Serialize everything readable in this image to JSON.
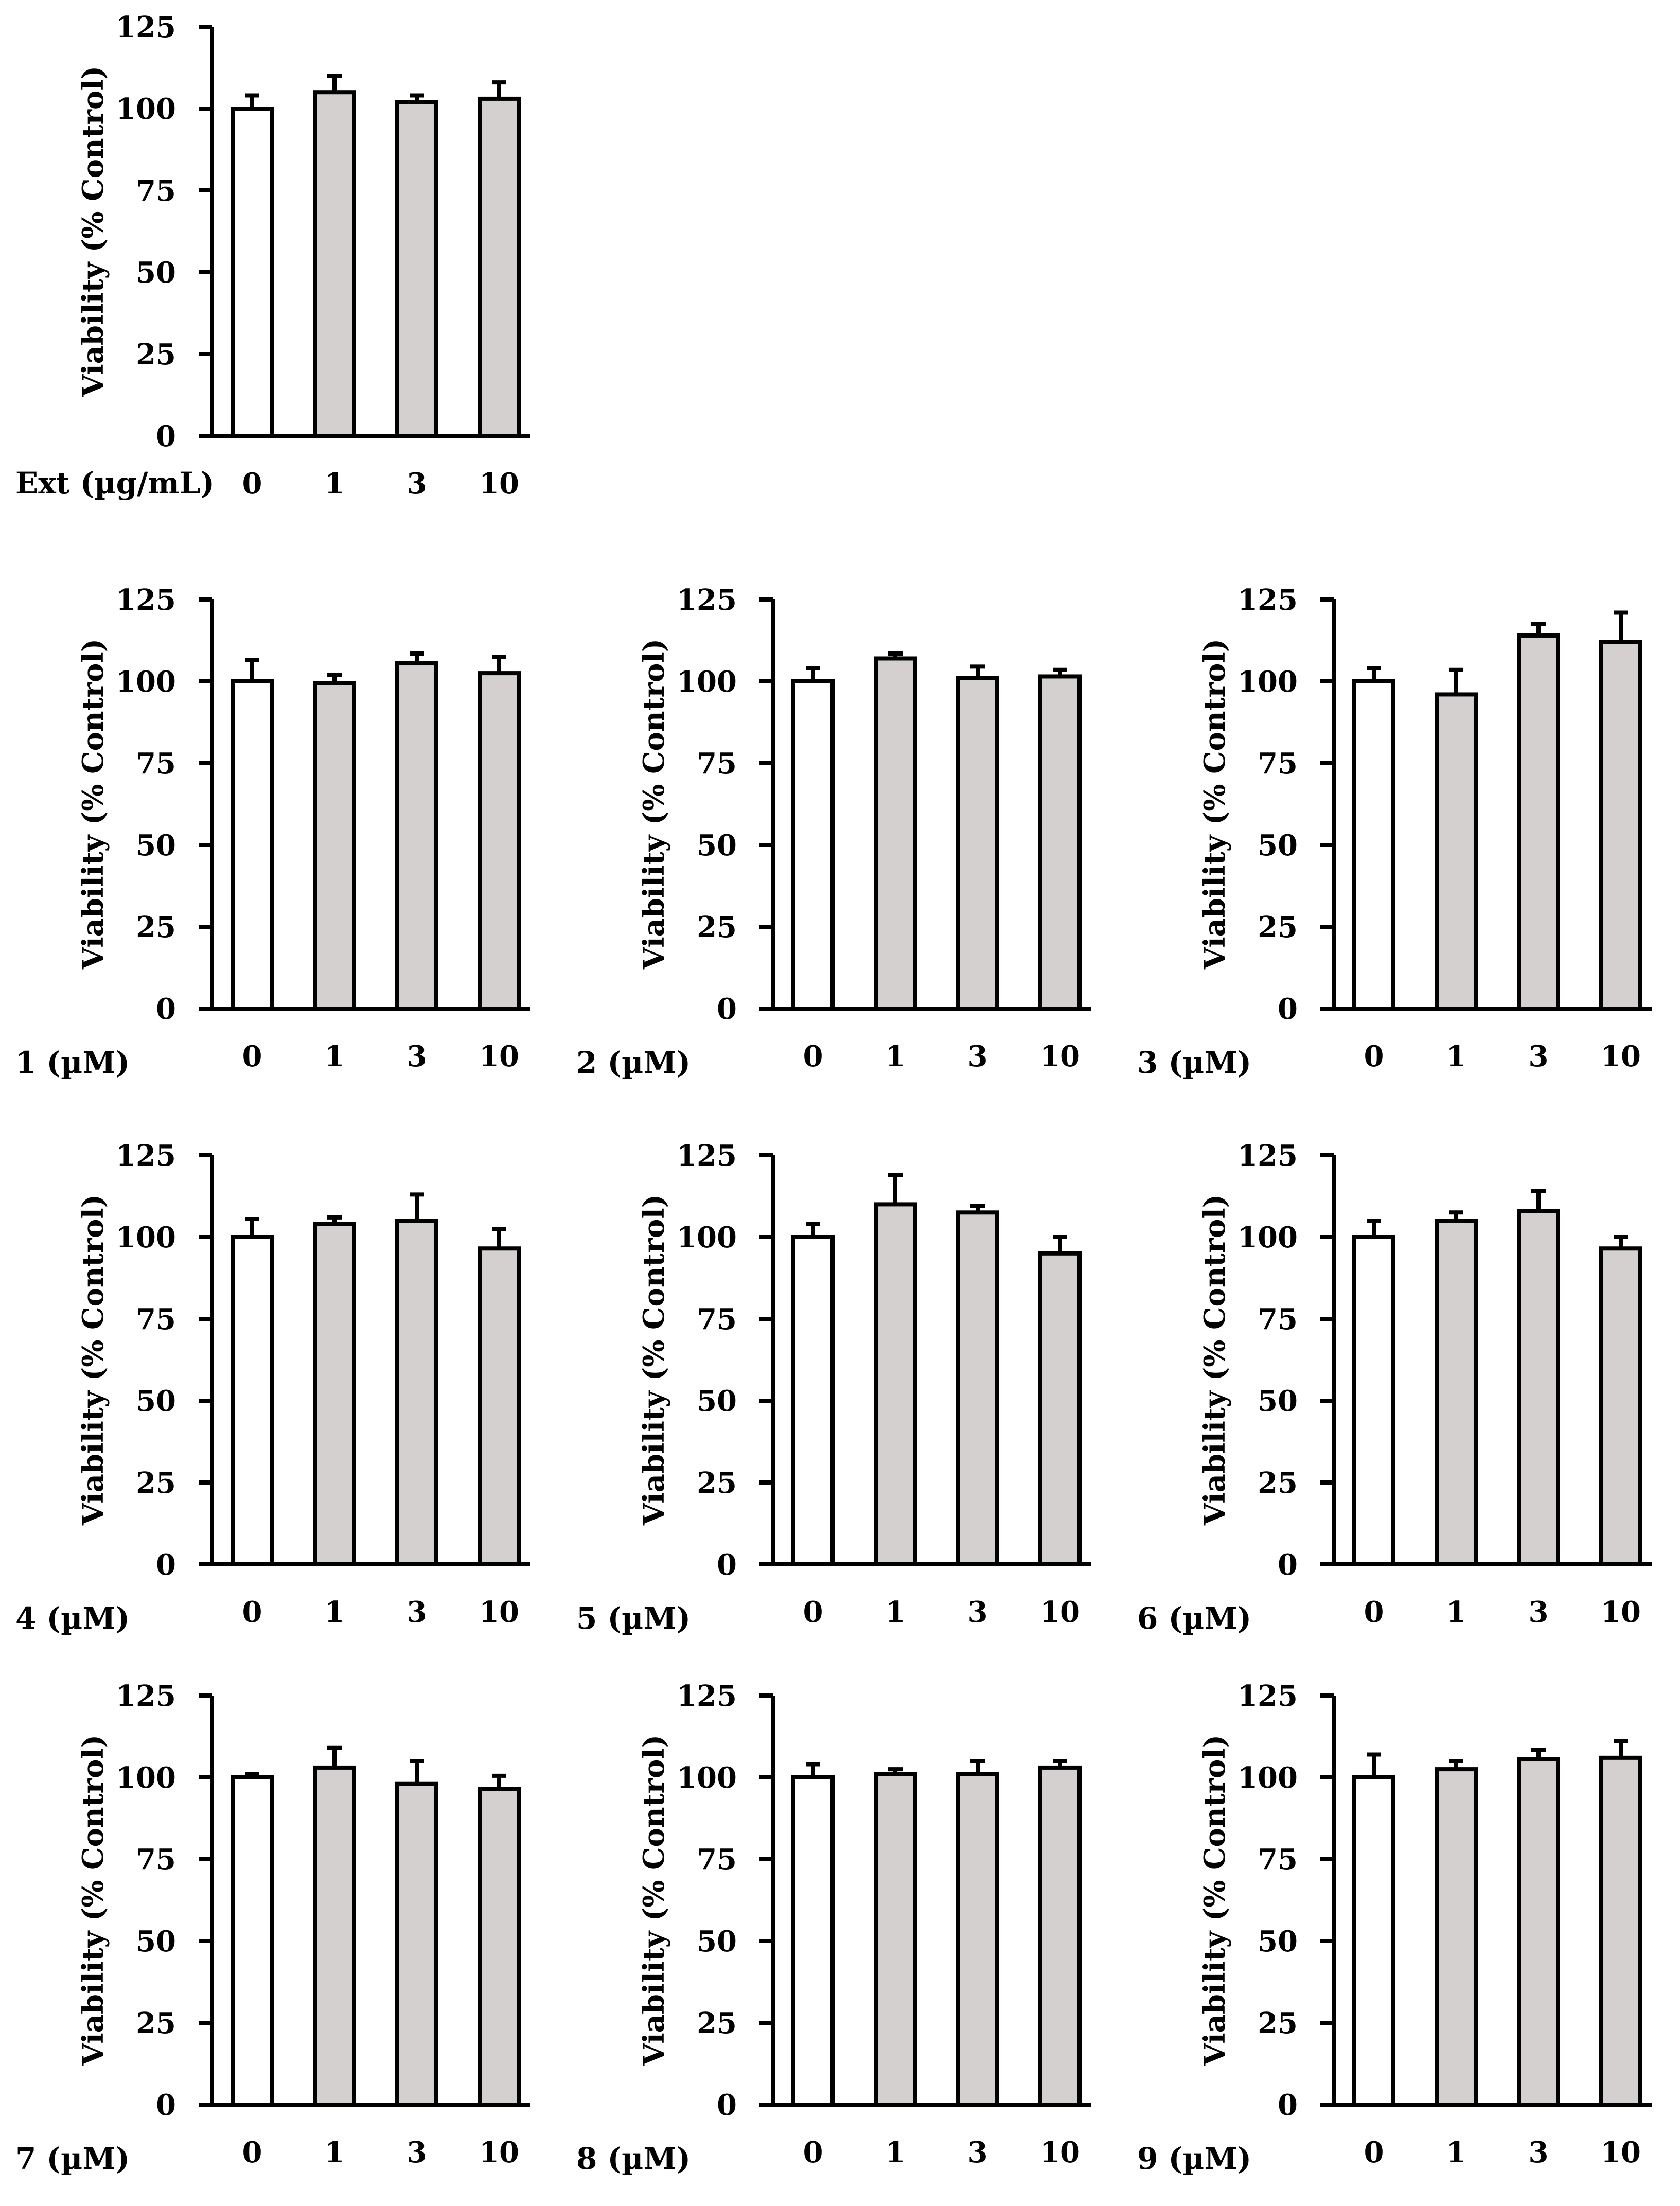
{
  "colors": {
    "control_bar": "#ffffff",
    "treated_bar": "#d4d0d0",
    "stroke": "#000000"
  },
  "chart_data": [
    {
      "type": "bar",
      "xlabel": "Ext (µg/mL)",
      "ylabel": "Viability (% Control)",
      "ylim": [
        0,
        125
      ],
      "yticks": [
        0,
        25,
        50,
        75,
        100,
        125
      ],
      "categories": [
        "0",
        "1",
        "3",
        "10"
      ],
      "values": [
        100,
        105,
        102,
        103
      ],
      "errors": [
        4,
        5,
        2,
        5
      ]
    },
    {
      "type": "bar",
      "xlabel": "1 (µM)",
      "ylabel": "Viability (% Control)",
      "ylim": [
        0,
        125
      ],
      "yticks": [
        0,
        25,
        50,
        75,
        100,
        125
      ],
      "categories": [
        "0",
        "1",
        "3",
        "10"
      ],
      "values": [
        100,
        99.5,
        105.5,
        102.5
      ],
      "errors": [
        6.5,
        2.5,
        3,
        5
      ]
    },
    {
      "type": "bar",
      "xlabel": "2 (µM)",
      "ylabel": "Viability (% Control)",
      "ylim": [
        0,
        125
      ],
      "yticks": [
        0,
        25,
        50,
        75,
        100,
        125
      ],
      "categories": [
        "0",
        "1",
        "3",
        "10"
      ],
      "values": [
        100,
        107,
        101,
        101.5
      ],
      "errors": [
        4,
        1.5,
        3.5,
        2
      ]
    },
    {
      "type": "bar",
      "xlabel": "3 (µM)",
      "ylabel": "Viability (% Control)",
      "ylim": [
        0,
        125
      ],
      "yticks": [
        0,
        25,
        50,
        75,
        100,
        125
      ],
      "categories": [
        "0",
        "1",
        "3",
        "10"
      ],
      "values": [
        100,
        96,
        114,
        112
      ],
      "errors": [
        4,
        7.5,
        3.5,
        9
      ]
    },
    {
      "type": "bar",
      "xlabel": "4 (µM)",
      "ylabel": "Viability (% Control)",
      "ylim": [
        0,
        125
      ],
      "yticks": [
        0,
        25,
        50,
        75,
        100,
        125
      ],
      "categories": [
        "0",
        "1",
        "3",
        "10"
      ],
      "values": [
        100,
        104,
        105,
        96.5
      ],
      "errors": [
        5.5,
        2,
        8,
        6
      ]
    },
    {
      "type": "bar",
      "xlabel": "5 (µM)",
      "ylabel": "Viability (% Control)",
      "ylim": [
        0,
        125
      ],
      "yticks": [
        0,
        25,
        50,
        75,
        100,
        125
      ],
      "categories": [
        "0",
        "1",
        "3",
        "10"
      ],
      "values": [
        100,
        110,
        107.5,
        95
      ],
      "errors": [
        4,
        9,
        2,
        5
      ]
    },
    {
      "type": "bar",
      "xlabel": "6 (µM)",
      "ylabel": "Viability (% Control)",
      "ylim": [
        0,
        125
      ],
      "yticks": [
        0,
        25,
        50,
        75,
        100,
        125
      ],
      "categories": [
        "0",
        "1",
        "3",
        "10"
      ],
      "values": [
        100,
        105,
        108,
        96.5
      ],
      "errors": [
        5,
        2.5,
        6,
        3.5
      ]
    },
    {
      "type": "bar",
      "xlabel": "7 (µM)",
      "ylabel": "Viability (% Control)",
      "ylim": [
        0,
        125
      ],
      "yticks": [
        0,
        25,
        50,
        75,
        100,
        125
      ],
      "categories": [
        "0",
        "1",
        "3",
        "10"
      ],
      "values": [
        100,
        103,
        98,
        96.5
      ],
      "errors": [
        1,
        6,
        7,
        4
      ]
    },
    {
      "type": "bar",
      "xlabel": "8 (µM)",
      "ylabel": "Viability (% Control)",
      "ylim": [
        0,
        125
      ],
      "yticks": [
        0,
        25,
        50,
        75,
        100,
        125
      ],
      "categories": [
        "0",
        "1",
        "3",
        "10"
      ],
      "values": [
        100,
        101,
        101,
        103
      ],
      "errors": [
        4,
        1.5,
        4,
        2
      ]
    },
    {
      "type": "bar",
      "xlabel": "9 (µM)",
      "ylabel": "Viability (% Control)",
      "ylim": [
        0,
        125
      ],
      "yticks": [
        0,
        25,
        50,
        75,
        100,
        125
      ],
      "categories": [
        "0",
        "1",
        "3",
        "10"
      ],
      "values": [
        100,
        102.5,
        105.5,
        106
      ],
      "errors": [
        7,
        2.5,
        3,
        5
      ]
    }
  ]
}
